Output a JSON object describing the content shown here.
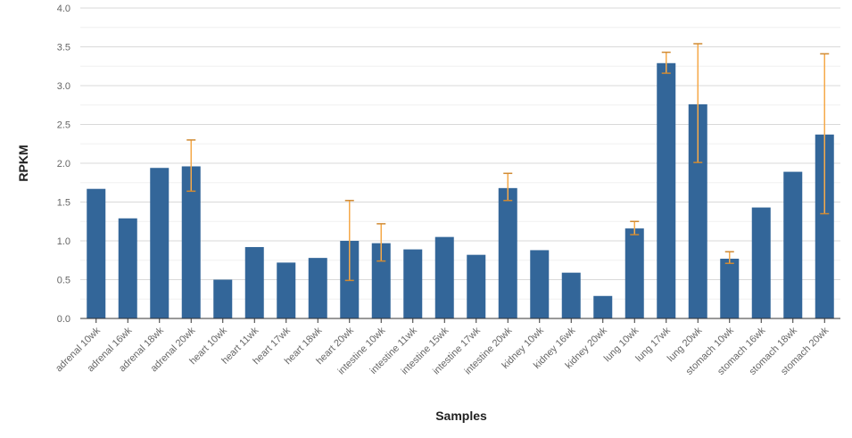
{
  "chart_data": {
    "type": "bar",
    "title": "",
    "xlabel": "Samples",
    "ylabel": "RPKM",
    "ylim": [
      0,
      4.0
    ],
    "yticks": [
      "0.0",
      "0.5",
      "1.0",
      "1.5",
      "2.0",
      "2.5",
      "3.0",
      "3.5",
      "4.0"
    ],
    "grid": true,
    "legend": "none",
    "categories": [
      "adrenal 10wk",
      "adrenal 16wk",
      "adrenal 18wk",
      "adrenal 20wk",
      "heart 10wk",
      "heart 11wk",
      "heart 17wk",
      "heart 18wk",
      "heart 20wk",
      "intestine 10wk",
      "intestine 11wk",
      "intestine 15wk",
      "intestine 17wk",
      "intestine 20wk",
      "kidney 10wk",
      "kidney 16wk",
      "kidney 20wk",
      "lung 10wk",
      "lung 17wk",
      "lung 20wk",
      "stomach 10wk",
      "stomach 16wk",
      "stomach 18wk",
      "stomach 20wk"
    ],
    "values": [
      1.67,
      1.29,
      1.94,
      1.96,
      0.5,
      0.92,
      0.72,
      0.78,
      1.0,
      0.97,
      0.89,
      1.05,
      0.82,
      1.68,
      0.88,
      0.59,
      0.29,
      1.16,
      3.29,
      2.76,
      0.77,
      1.43,
      1.89,
      2.37
    ],
    "error_low": [
      null,
      null,
      null,
      1.64,
      null,
      null,
      null,
      null,
      0.49,
      0.74,
      null,
      null,
      null,
      1.52,
      null,
      null,
      null,
      1.08,
      3.16,
      2.01,
      0.71,
      null,
      null,
      1.35
    ],
    "error_high": [
      null,
      null,
      null,
      2.3,
      null,
      null,
      null,
      null,
      1.52,
      1.22,
      null,
      null,
      null,
      1.87,
      null,
      null,
      null,
      1.25,
      3.43,
      3.54,
      0.86,
      null,
      null,
      3.41
    ],
    "colors": {
      "bar": "#336699",
      "error": "#f5a94a",
      "error_cap": "#d08a33",
      "grid": "#d9d9d9",
      "axis": "#333333"
    }
  }
}
